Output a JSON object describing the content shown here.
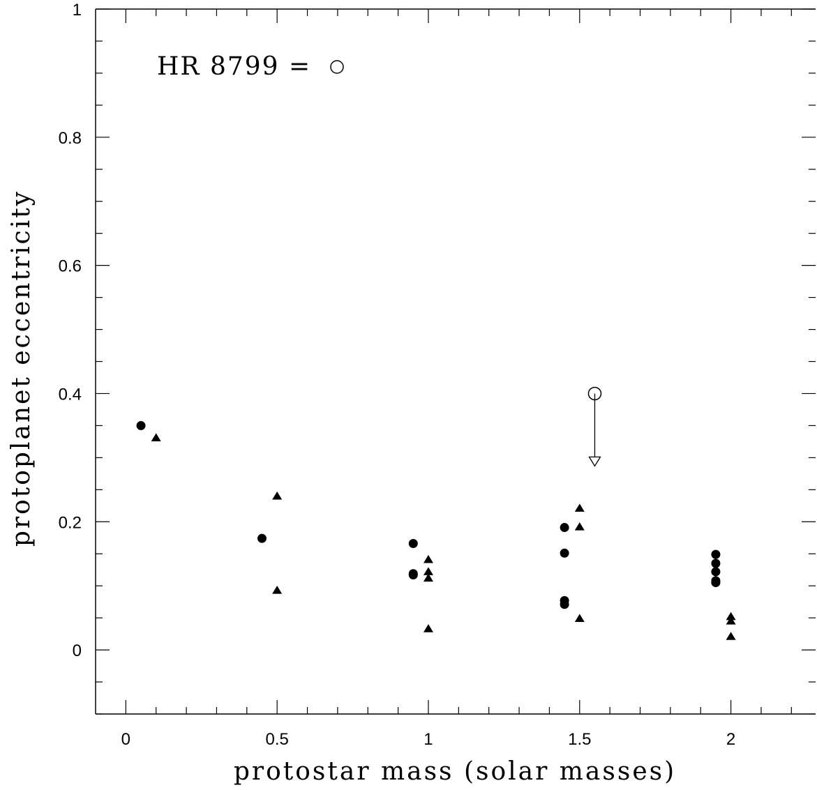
{
  "chart_data": {
    "type": "scatter",
    "title": "",
    "xlabel": "protostar mass (solar masses)",
    "ylabel": "protoplanet eccentricity",
    "xlim": [
      -0.1,
      2.28
    ],
    "ylim": [
      -0.1,
      1.0
    ],
    "x_ticks": [
      {
        "value": 0,
        "label": "0"
      },
      {
        "value": 0.5,
        "label": "0.5"
      },
      {
        "value": 1,
        "label": "1"
      },
      {
        "value": 1.5,
        "label": "1.5"
      },
      {
        "value": 2,
        "label": "2"
      }
    ],
    "y_ticks": [
      {
        "value": 0,
        "label": "0"
      },
      {
        "value": 0.2,
        "label": "0.2"
      },
      {
        "value": 0.4,
        "label": "0.4"
      },
      {
        "value": 0.6,
        "label": "0.6"
      },
      {
        "value": 0.8,
        "label": "0.8"
      },
      {
        "value": 1.0,
        "label": "1"
      }
    ],
    "annotation": {
      "text": "HR 8799 =",
      "marker": "open-circle"
    },
    "series": [
      {
        "marker": "filled-circle",
        "points": [
          {
            "x": 0.05,
            "y": 0.35
          },
          {
            "x": 0.45,
            "y": 0.174
          },
          {
            "x": 0.95,
            "y": 0.166
          },
          {
            "x": 0.95,
            "y": 0.119
          },
          {
            "x": 0.95,
            "y": 0.117
          },
          {
            "x": 1.45,
            "y": 0.191
          },
          {
            "x": 1.45,
            "y": 0.151
          },
          {
            "x": 1.45,
            "y": 0.077
          },
          {
            "x": 1.45,
            "y": 0.071
          },
          {
            "x": 1.95,
            "y": 0.149
          },
          {
            "x": 1.95,
            "y": 0.135
          },
          {
            "x": 1.95,
            "y": 0.122
          },
          {
            "x": 1.95,
            "y": 0.108
          },
          {
            "x": 1.95,
            "y": 0.105
          }
        ]
      },
      {
        "marker": "filled-triangle",
        "points": [
          {
            "x": 0.1,
            "y": 0.331
          },
          {
            "x": 0.5,
            "y": 0.24
          },
          {
            "x": 0.5,
            "y": 0.093
          },
          {
            "x": 1.0,
            "y": 0.141
          },
          {
            "x": 1.0,
            "y": 0.122
          },
          {
            "x": 1.0,
            "y": 0.112
          },
          {
            "x": 1.0,
            "y": 0.033
          },
          {
            "x": 1.5,
            "y": 0.221
          },
          {
            "x": 1.5,
            "y": 0.192
          },
          {
            "x": 1.5,
            "y": 0.049
          },
          {
            "x": 2.0,
            "y": 0.052
          },
          {
            "x": 2.0,
            "y": 0.045
          },
          {
            "x": 2.0,
            "y": 0.021
          }
        ]
      },
      {
        "name": "HR 8799",
        "marker": "open-circle",
        "upper_limit": true,
        "points": [
          {
            "x": 1.55,
            "y": 0.4,
            "arrow_to": 0.3
          }
        ]
      }
    ]
  }
}
